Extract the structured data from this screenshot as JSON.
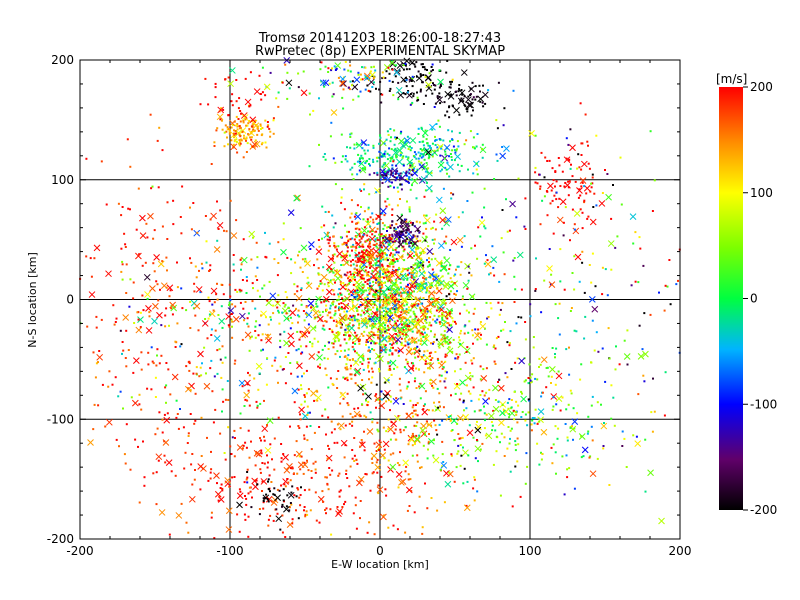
{
  "chart_data": {
    "type": "scatter",
    "title": "Tromsø 20141203 18:26:00-18:27:43",
    "subtitle": "RwPretec (8p) EXPERIMENTAL SKYMAP",
    "xlabel": "E-W location [km]",
    "ylabel": "N-S location [km]",
    "xlim": [
      -200,
      200
    ],
    "ylim": [
      -200,
      200
    ],
    "xticks": [
      "-200",
      "-100",
      "0",
      "100",
      "200"
    ],
    "yticks": [
      "-200",
      "-100",
      "0",
      "100",
      "200"
    ],
    "grid_values": [
      -100,
      0,
      100
    ],
    "grid": true,
    "marker_types": [
      "dot",
      "x"
    ],
    "colorbar": {
      "label": "[m/s]",
      "range": [
        -200,
        200
      ],
      "ticks": [
        "-200",
        "-100",
        "0",
        "100",
        "200"
      ],
      "colormap": "black-purple-blue-cyan-green-yellow-orange-red"
    },
    "clusters": [
      {
        "x": 5,
        "y": 20,
        "sx": 26,
        "sy": 30,
        "n": 900,
        "v": 60,
        "sv": 90
      },
      {
        "x": 10,
        "y": -20,
        "sx": 28,
        "sy": 20,
        "n": 650,
        "v": 100,
        "sv": 90
      },
      {
        "x": -10,
        "y": 40,
        "sx": 12,
        "sy": 15,
        "n": 180,
        "v": 200,
        "sv": 30
      },
      {
        "x": 15,
        "y": 55,
        "sx": 6,
        "sy": 5,
        "n": 80,
        "v": -160,
        "sv": 20
      },
      {
        "x": 20,
        "y": 120,
        "sx": 25,
        "sy": 12,
        "n": 320,
        "v": -20,
        "sv": 40
      },
      {
        "x": 10,
        "y": 105,
        "sx": 7,
        "sy": 4,
        "n": 60,
        "v": -120,
        "sv": 30
      },
      {
        "x": 20,
        "y": 183,
        "sx": 15,
        "sy": 10,
        "n": 110,
        "v": -200,
        "sv": 10
      },
      {
        "x": 55,
        "y": 168,
        "sx": 10,
        "sy": 8,
        "n": 70,
        "v": -200,
        "sv": 10
      },
      {
        "x": -20,
        "y": 185,
        "sx": 30,
        "sy": 12,
        "n": 140,
        "v": 40,
        "sv": 110
      },
      {
        "x": -90,
        "y": 140,
        "sx": 8,
        "sy": 8,
        "n": 130,
        "v": 140,
        "sv": 30
      },
      {
        "x": -90,
        "y": 165,
        "sx": 15,
        "sy": 15,
        "n": 40,
        "v": 200,
        "sv": 10
      },
      {
        "x": 125,
        "y": 95,
        "sx": 10,
        "sy": 18,
        "n": 90,
        "v": 200,
        "sv": 10
      },
      {
        "x": -70,
        "y": -150,
        "sx": 40,
        "sy": 30,
        "n": 300,
        "v": 190,
        "sv": 25
      },
      {
        "x": -70,
        "y": -165,
        "sx": 10,
        "sy": 10,
        "n": 40,
        "v": -200,
        "sv": 10
      },
      {
        "x": 10,
        "y": -100,
        "sx": 35,
        "sy": 45,
        "n": 350,
        "v": 170,
        "sv": 40
      },
      {
        "x": 80,
        "y": -100,
        "sx": 40,
        "sy": 25,
        "n": 250,
        "v": 40,
        "sv": 60
      },
      {
        "x": -70,
        "y": -20,
        "sx": 55,
        "sy": 40,
        "n": 450,
        "v": 80,
        "sv": 120
      },
      {
        "x": -150,
        "y": 30,
        "sx": 40,
        "sy": 50,
        "n": 150,
        "v": 190,
        "sv": 20
      },
      {
        "x": 100,
        "y": 0,
        "sx": 60,
        "sy": 80,
        "n": 400,
        "v": 20,
        "sv": 150
      },
      {
        "x": -150,
        "y": -60,
        "sx": 30,
        "sy": 40,
        "n": 100,
        "v": 190,
        "sv": 20
      }
    ]
  }
}
